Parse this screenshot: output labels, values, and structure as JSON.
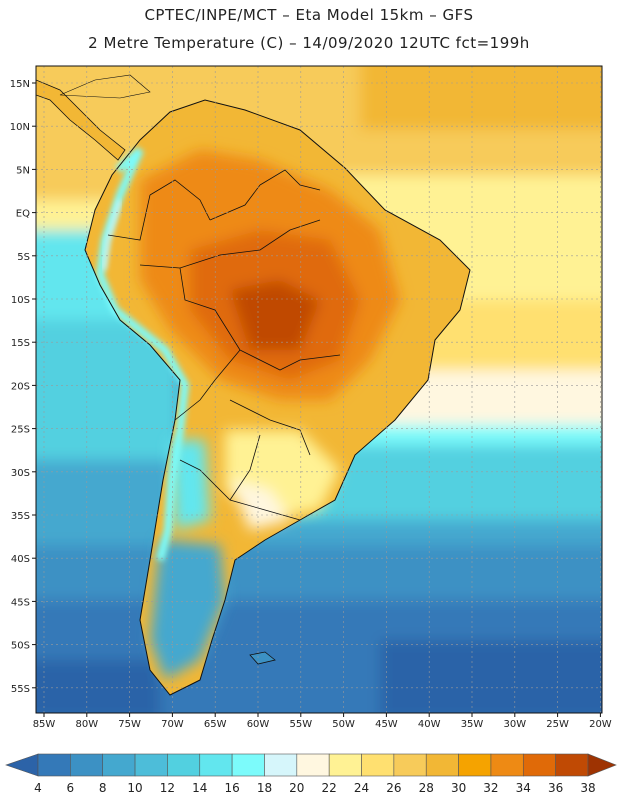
{
  "header": {
    "line1": "CPTEC/INPE/MCT –   Eta Model 15km – GFS",
    "line2": "2 Metre Temperature (C) – 14/09/2020 12UTC fct=199h"
  },
  "axes": {
    "lat_labels": [
      "15N",
      "10N",
      "5N",
      "EQ",
      "5S",
      "10S",
      "15S",
      "20S",
      "25S",
      "30S",
      "35S",
      "40S",
      "45S",
      "50S",
      "55S"
    ],
    "lon_labels": [
      "85W",
      "80W",
      "75W",
      "70W",
      "65W",
      "60W",
      "55W",
      "50W",
      "45W",
      "40W",
      "35W",
      "30W",
      "25W",
      "20W"
    ]
  },
  "colorbar": {
    "labels": [
      "4",
      "6",
      "8",
      "10",
      "12",
      "14",
      "16",
      "18",
      "20",
      "22",
      "24",
      "26",
      "28",
      "30",
      "32",
      "34",
      "36",
      "38"
    ],
    "colors": [
      "#2c63a8",
      "#3479b8",
      "#3c91c4",
      "#44a8cf",
      "#4dbdd9",
      "#52d0e0",
      "#62e6ee",
      "#7cfbfb",
      "#d6f6fb",
      "#fff7e0",
      "#fff294",
      "#ffe070",
      "#f7cb5a",
      "#f2b735",
      "#f5a300",
      "#ee8a14",
      "#e06a08",
      "#c04a04",
      "#9e3302"
    ]
  }
}
